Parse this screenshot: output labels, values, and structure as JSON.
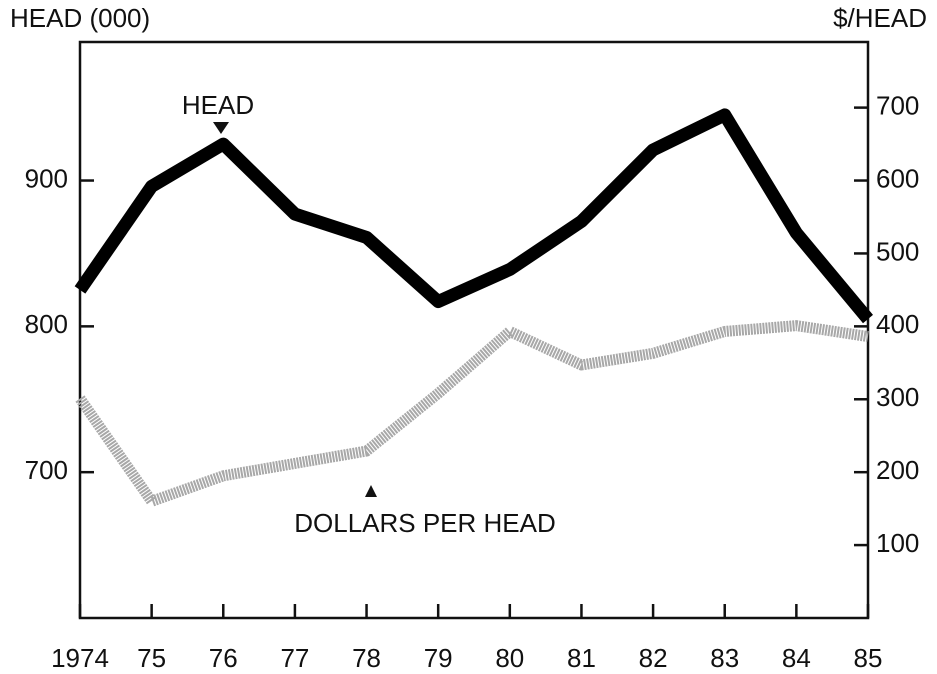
{
  "chart_data": {
    "type": "line",
    "ylabel": "HEAD (000)",
    "y2label": "$/HEAD",
    "categories": [
      "1974",
      "75",
      "76",
      "77",
      "78",
      "79",
      "80",
      "81",
      "82",
      "83",
      "84",
      "85"
    ],
    "series": [
      {
        "name": "HEAD",
        "color": "#000000",
        "values": [
          825,
          896,
          925,
          877,
          861,
          817,
          839,
          872,
          921,
          945,
          864,
          805
        ]
      },
      {
        "name": "DOLLARS PER HEAD",
        "color": "#a8a8a8",
        "axis": "y2",
        "values": [
          301,
          160,
          195,
          212,
          229,
          308,
          393,
          347,
          363,
          393,
          401,
          386
        ]
      }
    ],
    "ylim": [
      600,
      995
    ],
    "yticks": [
      700,
      800,
      900
    ],
    "y2lim": [
      0,
      790
    ],
    "y2ticks": [
      100,
      200,
      300,
      400,
      500,
      600,
      700
    ],
    "grid": false
  }
}
